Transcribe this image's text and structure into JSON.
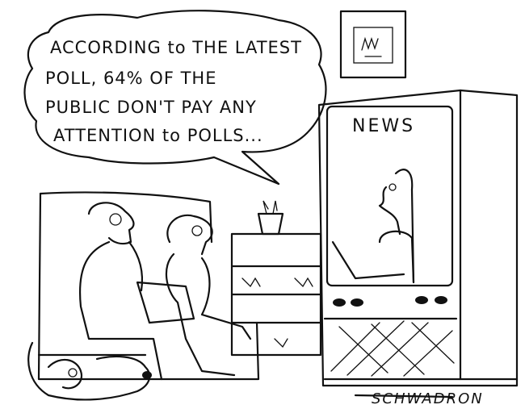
{
  "bubble": {
    "lines": [
      "ACCORDING to THE LATEST",
      "POLL, 64% OF THE",
      "PUBLIC DON'T PAY ANY",
      "ATTENTION to POLLS..."
    ]
  },
  "tv": {
    "label": "NEWS"
  },
  "signature": "SCHWADRON"
}
